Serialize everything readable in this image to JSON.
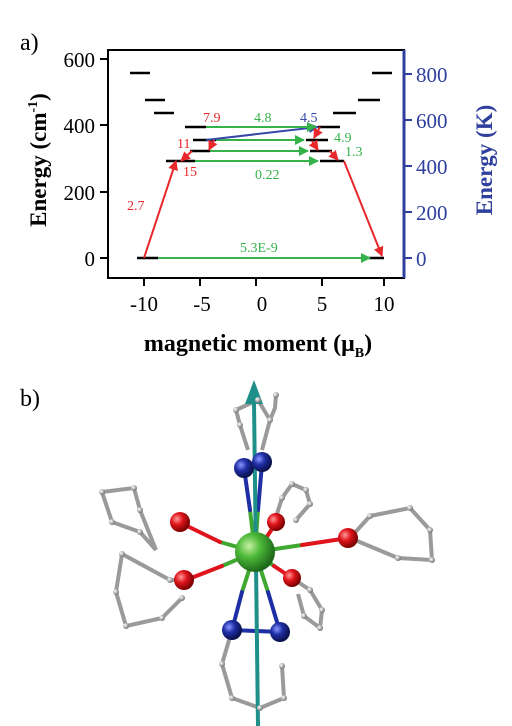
{
  "panel_a": {
    "label": "a)",
    "left_axis_label": "Energy (cm",
    "left_axis_sup": "-1",
    "left_axis_close": ")",
    "right_axis_label": "Energy (K)",
    "x_axis_label": "magnetic moment (μ",
    "x_axis_sub": "B",
    "x_axis_close": ")",
    "left_ticks": [
      "0",
      "200",
      "400",
      "600"
    ],
    "right_ticks": [
      "0",
      "200",
      "400",
      "600",
      "800"
    ],
    "x_ticks": [
      "-10",
      "-5",
      "0",
      "5",
      "10"
    ],
    "transition_labels": {
      "red_2_7": "2.7",
      "red_15": "15",
      "red_11": "11",
      "red_7_9": "7.9",
      "red_1_3": "1.3",
      "green_4_8": "4.8",
      "blue_4_5": "4.5",
      "green_4_9": "4.9",
      "green_0_22": "0.22",
      "green_5_3e9": "5.3E-9"
    },
    "colors": {
      "red": "#e8282b",
      "green": "#35b34a",
      "blue": "#3548a8",
      "axis_right": "#2e3f9e",
      "black": "#000000"
    }
  },
  "panel_b": {
    "label": "b)",
    "atom_colors": {
      "center": "#3fa830",
      "oxygen": "#e0141c",
      "nitrogen": "#1e2fa6",
      "carbon": "#9a9a9a",
      "axis_arrow": "#1f8f8a"
    }
  },
  "chart_data": {
    "type": "line",
    "title": "",
    "xlabel": "magnetic moment (μB)",
    "ylabel": "Energy (cm-1)",
    "y2label": "Energy (K)",
    "xlim": [
      -12,
      12
    ],
    "ylim": [
      -40,
      600
    ],
    "y2lim": [
      -58,
      864
    ],
    "energy_levels": [
      {
        "moment": -10,
        "energy": 0
      },
      {
        "moment": 10,
        "energy": 0
      },
      {
        "moment": -6.8,
        "energy": 290
      },
      {
        "moment": 6.8,
        "energy": 290
      },
      {
        "moment": -5.2,
        "energy": 325
      },
      {
        "moment": 5.2,
        "energy": 325
      },
      {
        "moment": -4.9,
        "energy": 350
      },
      {
        "moment": 4.9,
        "energy": 350
      },
      {
        "moment": -4.2,
        "energy": 390
      },
      {
        "moment": 4.2,
        "energy": 390
      },
      {
        "moment": -8,
        "energy": 440
      },
      {
        "moment": 8,
        "energy": 440
      },
      {
        "moment": -9,
        "energy": 470
      },
      {
        "moment": 9,
        "energy": 470
      },
      {
        "moment": -10,
        "energy": 550
      },
      {
        "moment": 10,
        "energy": 550
      }
    ],
    "transitions": [
      {
        "label": "2.7",
        "color": "red"
      },
      {
        "label": "15",
        "color": "red"
      },
      {
        "label": "11",
        "color": "red"
      },
      {
        "label": "7.9",
        "color": "red"
      },
      {
        "label": "1.3",
        "color": "red"
      },
      {
        "label": "4.8",
        "color": "green"
      },
      {
        "label": "4.5",
        "color": "blue"
      },
      {
        "label": "4.9",
        "color": "green"
      },
      {
        "label": "0.22",
        "color": "green"
      },
      {
        "label": "5.3E-9",
        "color": "green"
      }
    ]
  }
}
